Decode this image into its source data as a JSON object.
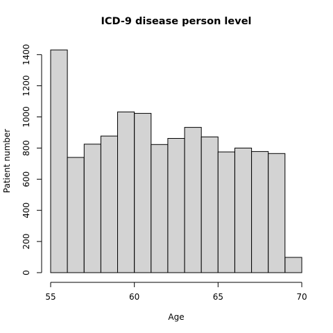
{
  "chart_data": {
    "type": "bar",
    "title": "ICD-9 disease person level",
    "xlabel": "Age",
    "ylabel": "Patient number",
    "bin_edges": [
      55,
      56,
      57,
      58,
      59,
      60,
      61,
      62,
      63,
      64,
      65,
      66,
      67,
      68,
      69,
      70
    ],
    "values": [
      1430,
      740,
      825,
      877,
      1032,
      1023,
      823,
      862,
      933,
      872,
      775,
      800,
      778,
      765,
      98
    ],
    "xlim": [
      55,
      70
    ],
    "ylim": [
      0,
      1430
    ],
    "xticks": [
      55,
      60,
      65,
      70
    ],
    "yticks": [
      0,
      200,
      400,
      600,
      800,
      1000,
      1200,
      1400
    ],
    "bar_color": "#d3d3d3",
    "edge_color": "#000000",
    "grid": false,
    "legend": "none"
  }
}
